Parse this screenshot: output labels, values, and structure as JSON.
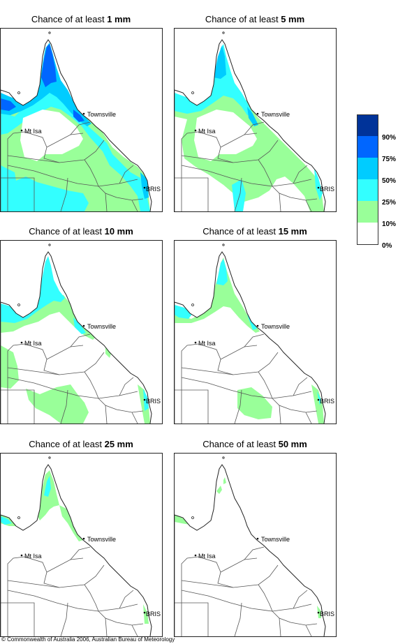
{
  "panels": [
    {
      "title_prefix": "Chance of at least ",
      "amount": "1 mm",
      "level": 1
    },
    {
      "title_prefix": "Chance of at least ",
      "amount": "5 mm",
      "level": 2
    },
    {
      "title_prefix": "Chance of at least ",
      "amount": "10 mm",
      "level": 3
    },
    {
      "title_prefix": "Chance of at least ",
      "amount": "15 mm",
      "level": 4
    },
    {
      "title_prefix": "Chance of at least ",
      "amount": "25 mm",
      "level": 5
    },
    {
      "title_prefix": "Chance of at least ",
      "amount": "50 mm",
      "level": 6
    }
  ],
  "places": {
    "townsville": "Townsville",
    "mt_isa": "Mt Isa",
    "brisbane": "BRIS"
  },
  "legend": {
    "labels": [
      "90%",
      "75%",
      "50%",
      "25%",
      "10%",
      "0%"
    ],
    "colors": [
      "#003399",
      "#0066ff",
      "#00ccff",
      "#33ffff",
      "#99ff99",
      "#ffffff"
    ]
  },
  "copyright": "© Commonwealth of Australia 2006, Australian Bureau of Meteorology"
}
